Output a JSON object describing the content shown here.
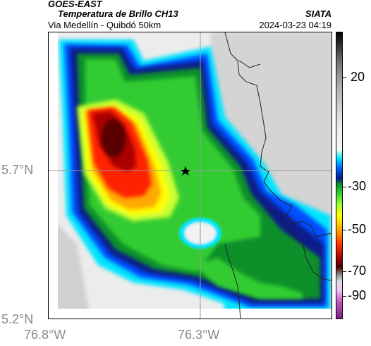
{
  "header": {
    "satellite": "GOES-EAST",
    "product": "Temperatura de Brillo CH13",
    "route": "Via Medellín - Quibdó 50km",
    "org": "SIATA",
    "datetime": "2024-03-23 04:19"
  },
  "map": {
    "lat_labels": [
      "5.7°N",
      "5.2°N"
    ],
    "lon_labels": [
      "76.8°W",
      "76.3°W"
    ],
    "marker_icon": "star-marker-icon"
  },
  "colorbar": {
    "labels": [
      "20",
      "-30",
      "-50",
      "-70",
      "-90"
    ],
    "colors": {
      "warm": "#f0f0f0",
      "cold_cyan": "#00e5ff",
      "blue": "#0050ff",
      "green": "#22cc22",
      "yellow": "#ffff00",
      "orange": "#ff8800",
      "red": "#ff2200",
      "dark_red": "#880000",
      "magenta": "#aa44aa"
    }
  }
}
